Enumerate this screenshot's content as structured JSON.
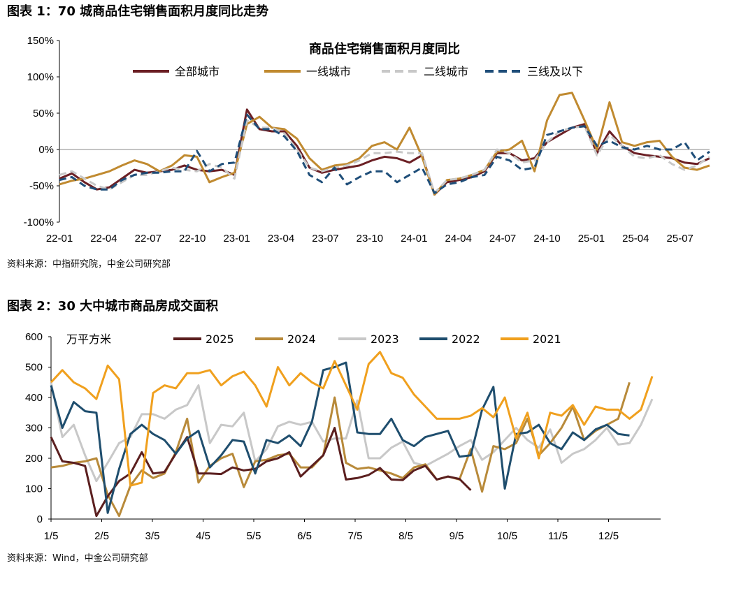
{
  "figure1": {
    "heading": "图表 1：70 城商品住宅销售面积月度同比走势",
    "source": "资料来源：中指研究院，中金公司研究部",
    "chart_data": {
      "type": "line",
      "title": "商品住宅销售面积月度同比",
      "ylim": [
        -100,
        150
      ],
      "y_ticks": [
        "150%",
        "100%",
        "50%",
        "0%",
        "-50%",
        "-100%"
      ],
      "y_tick_values": [
        150,
        100,
        50,
        0,
        -50,
        -100
      ],
      "x_ticks": [
        "22-01",
        "22-04",
        "22-07",
        "22-10",
        "23-01",
        "23-04",
        "23-07",
        "23-10",
        "24-01",
        "24-04",
        "24-07",
        "24-10",
        "25-01",
        "25-04",
        "25-07"
      ],
      "legend_position": "top",
      "series": [
        {
          "name": "全部城市",
          "color": "#6b1f24",
          "dash": "solid",
          "values": [
            -40,
            -33,
            -45,
            -55,
            -52,
            -40,
            -28,
            -32,
            -30,
            -28,
            -22,
            -28,
            -30,
            -28,
            -35,
            55,
            28,
            25,
            25,
            5,
            -25,
            -32,
            -28,
            -25,
            -22,
            -15,
            -10,
            -12,
            -18,
            -8,
            -62,
            -45,
            -42,
            -38,
            -30,
            -5,
            -5,
            -15,
            -12,
            10,
            20,
            30,
            35,
            -5,
            25,
            5,
            -5,
            -8,
            -10,
            -12,
            -18,
            -20,
            -12
          ]
        },
        {
          "name": "一线城市",
          "color": "#c08a30",
          "dash": "solid",
          "values": [
            -48,
            -43,
            -40,
            -35,
            -30,
            -22,
            -15,
            -20,
            -30,
            -22,
            -8,
            -10,
            -45,
            -38,
            -32,
            35,
            45,
            30,
            28,
            15,
            -12,
            -28,
            -22,
            -20,
            -12,
            5,
            10,
            0,
            30,
            -10,
            -62,
            -42,
            -40,
            -35,
            -28,
            -3,
            0,
            12,
            -30,
            40,
            75,
            78,
            40,
            0,
            65,
            10,
            5,
            10,
            12,
            -10,
            -25,
            -28,
            -22
          ]
        },
        {
          "name": "二线城市",
          "color": "#c8c8c8",
          "dash": "dash",
          "values": [
            -35,
            -30,
            -40,
            -50,
            -55,
            -45,
            -35,
            -35,
            -30,
            -25,
            -28,
            -30,
            -20,
            -25,
            -40,
            40,
            30,
            30,
            22,
            0,
            -25,
            -30,
            -25,
            -22,
            -15,
            -5,
            -5,
            -3,
            -5,
            -5,
            -60,
            -42,
            -40,
            -35,
            -28,
            0,
            -5,
            -18,
            -15,
            10,
            25,
            30,
            32,
            -8,
            20,
            5,
            -10,
            -12,
            -8,
            -20,
            -28,
            -22,
            -10
          ]
        },
        {
          "name": "三线及以下",
          "color": "#1f4e79",
          "dash": "dash",
          "values": [
            -42,
            -38,
            -50,
            -55,
            -55,
            -42,
            -35,
            -32,
            -32,
            -30,
            -30,
            -2,
            -30,
            -20,
            -18,
            48,
            28,
            28,
            18,
            -2,
            -35,
            -45,
            -25,
            -48,
            -38,
            -30,
            -30,
            -45,
            -35,
            -25,
            -60,
            -48,
            -45,
            -38,
            -35,
            -10,
            -15,
            -28,
            -25,
            20,
            25,
            30,
            32,
            5,
            12,
            3,
            0,
            5,
            0,
            0,
            10,
            -15,
            -3
          ]
        }
      ]
    }
  },
  "figure2": {
    "heading": "图表 2：30 大中城市商品房成交面积",
    "source": "资料来源：Wind，中金公司研究部",
    "chart_data": {
      "type": "line",
      "ylabel": "万平方米",
      "ylim": [
        0,
        600
      ],
      "y_ticks": [
        "600",
        "500",
        "400",
        "300",
        "200",
        "100",
        "0"
      ],
      "y_tick_values": [
        600,
        500,
        400,
        300,
        200,
        100,
        0
      ],
      "x_ticks": [
        "1/5",
        "2/5",
        "3/5",
        "4/5",
        "5/5",
        "6/5",
        "7/5",
        "8/5",
        "9/5",
        "10/5",
        "11/5",
        "12/5"
      ],
      "legend_position": "top",
      "series": [
        {
          "name": "2025",
          "color": "#5b1f1f",
          "values": [
            270,
            190,
            185,
            175,
            10,
            75,
            125,
            150,
            220,
            150,
            155,
            215,
            270,
            150,
            150,
            148,
            170,
            160,
            165,
            190,
            200,
            220,
            140,
            175,
            210,
            300,
            130,
            135,
            145,
            168,
            130,
            128,
            160,
            175,
            130,
            140,
            132,
            95
          ]
        },
        {
          "name": "2024",
          "color": "#b88a3a",
          "values": [
            170,
            175,
            185,
            190,
            200,
            80,
            10,
            110,
            160,
            135,
            150,
            220,
            330,
            120,
            175,
            200,
            215,
            105,
            190,
            195,
            210,
            215,
            170,
            170,
            210,
            400,
            185,
            165,
            170,
            160,
            150,
            135,
            170,
            180,
            130,
            140,
            130,
            230,
            90,
            240,
            230,
            250,
            330,
            210,
            250,
            300,
            370,
            260,
            290,
            310,
            330,
            450
          ]
        },
        {
          "name": "2023",
          "color": "#c8c8c8",
          "values": [
            450,
            270,
            310,
            210,
            125,
            185,
            250,
            270,
            345,
            345,
            330,
            360,
            375,
            440,
            250,
            310,
            305,
            350,
            190,
            230,
            305,
            320,
            310,
            320,
            255,
            265,
            265,
            390,
            200,
            200,
            235,
            255,
            185,
            175,
            195,
            215,
            240,
            260,
            195,
            220,
            260,
            300,
            260,
            235,
            295,
            185,
            215,
            230,
            260,
            300,
            245,
            250,
            310,
            395
          ]
        },
        {
          "name": "2022",
          "color": "#1f4e6e",
          "values": [
            440,
            300,
            385,
            355,
            350,
            20,
            165,
            280,
            310,
            280,
            260,
            215,
            265,
            290,
            170,
            210,
            260,
            255,
            150,
            260,
            250,
            275,
            240,
            320,
            490,
            500,
            515,
            285,
            280,
            280,
            330,
            260,
            240,
            270,
            280,
            290,
            205,
            210,
            360,
            435,
            100,
            280,
            285,
            310,
            250,
            230,
            285,
            260,
            295,
            310,
            280,
            275
          ]
        },
        {
          "name": "2021",
          "color": "#f0a01e",
          "values": [
            450,
            490,
            450,
            430,
            395,
            505,
            460,
            110,
            120,
            415,
            440,
            430,
            480,
            480,
            490,
            440,
            470,
            485,
            440,
            370,
            500,
            440,
            480,
            450,
            430,
            520,
            440,
            360,
            510,
            550,
            480,
            465,
            410,
            370,
            330,
            330,
            330,
            340,
            365,
            335,
            400,
            265,
            350,
            200,
            350,
            340,
            375,
            310,
            370,
            360,
            360,
            330,
            360,
            470
          ]
        }
      ]
    }
  }
}
